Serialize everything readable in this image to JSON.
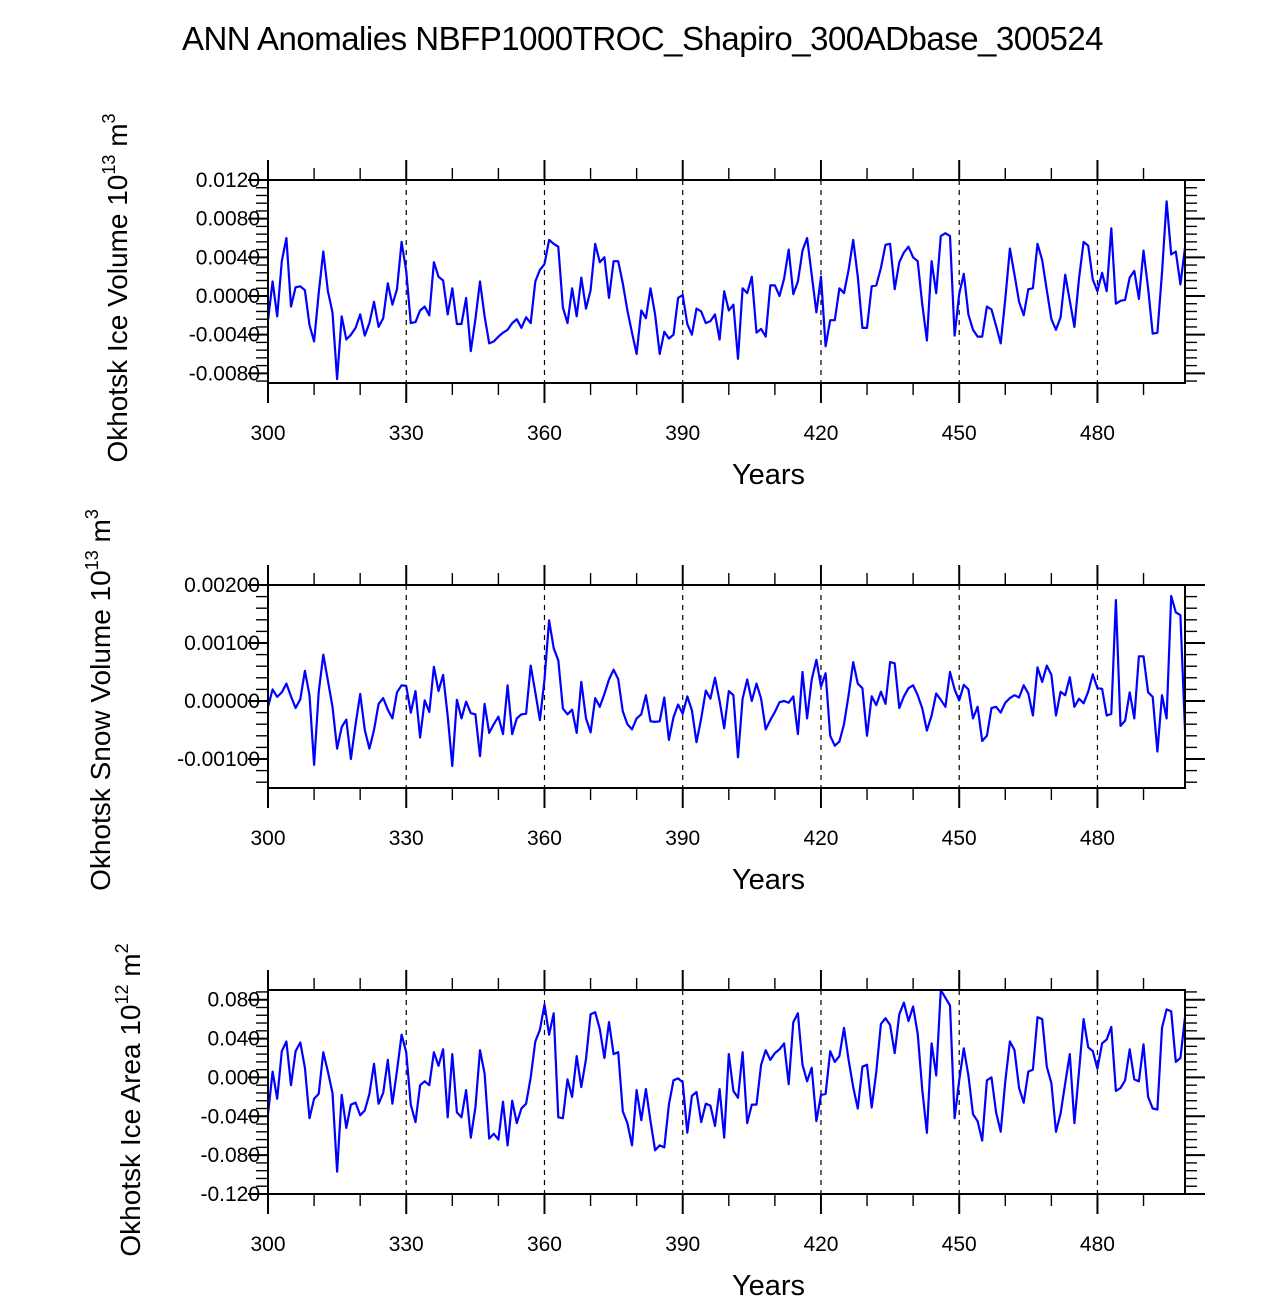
{
  "title": "ANN Anomalies NBFP1000TROC_Shapiro_300ADbase_300524",
  "chart_data": [
    {
      "type": "line",
      "title": "",
      "xlabel": "Years",
      "ylabel": "Okhotsk Ice Volume 10",
      "ylabel_exponent": "13",
      "ylabel_unit": " m",
      "ylabel_unit_exponent": "3",
      "xlim": [
        300,
        499
      ],
      "ylim": [
        -0.009,
        0.012
      ],
      "xticks": [
        300,
        330,
        360,
        390,
        420,
        450,
        480
      ],
      "xtick_labels": [
        "300",
        "330",
        "360",
        "390",
        "420",
        "450",
        "480"
      ],
      "yticks": [
        -0.008,
        -0.004,
        0.0,
        0.004,
        0.008,
        0.012
      ],
      "ytick_labels": [
        "-0.0080",
        "-0.0040",
        "0.0000",
        "0.0040",
        "0.0080",
        "0.0120"
      ],
      "vlines": [
        330,
        360,
        390,
        420,
        450,
        480
      ],
      "line_color": "#0000ff",
      "x_start": 300,
      "series": [
        {
          "name": "Okhotsk Ice Volume",
          "values": [
            -0.0025,
            0.0015,
            -0.0021,
            0.0036,
            0.006,
            -0.0011,
            0.0009,
            0.001,
            0.0006,
            -0.003,
            -0.0047,
            0.0003,
            0.0046,
            0.0005,
            -0.0017,
            -0.0086,
            -0.0021,
            -0.0045,
            -0.004,
            -0.0033,
            -0.0019,
            -0.0041,
            -0.0028,
            -0.0006,
            -0.0032,
            -0.0023,
            0.0013,
            -0.0009,
            0.0007,
            0.0056,
            0.0026,
            -0.0028,
            -0.0027,
            -0.0015,
            -0.0011,
            -0.002,
            0.0035,
            0.002,
            0.0016,
            -0.0019,
            0.0008,
            -0.0029,
            -0.0029,
            -0.0002,
            -0.0057,
            -0.0024,
            0.0015,
            -0.0021,
            -0.0049,
            -0.0047,
            -0.0042,
            -0.0038,
            -0.0035,
            -0.0028,
            -0.0024,
            -0.0033,
            -0.0022,
            -0.0028,
            0.0015,
            0.0027,
            0.0033,
            0.0058,
            0.0054,
            0.0051,
            -0.0012,
            -0.0028,
            0.0008,
            -0.0021,
            0.0019,
            -0.0013,
            0.0006,
            0.0054,
            0.0035,
            0.004,
            -0.0002,
            0.0036,
            0.0036,
            0.0013,
            -0.0015,
            -0.0038,
            -0.006,
            -0.0015,
            -0.0023,
            0.0008,
            -0.0019,
            -0.006,
            -0.0037,
            -0.0044,
            -0.004,
            -0.0002,
            0.0001,
            -0.0029,
            -0.004,
            -0.0013,
            -0.0016,
            -0.0028,
            -0.0026,
            -0.0019,
            -0.0045,
            0.0005,
            -0.0015,
            -0.0009,
            -0.0065,
            0.0008,
            0.0003,
            0.002,
            -0.0038,
            -0.0034,
            -0.0042,
            0.0011,
            0.0011,
            0.0,
            0.0018,
            0.0048,
            0.0002,
            0.0015,
            0.0047,
            0.006,
            0.0022,
            -0.0017,
            0.002,
            -0.0052,
            -0.0025,
            -0.0025,
            0.0008,
            0.0003,
            0.0027,
            0.0058,
            0.002,
            -0.0033,
            -0.0033,
            0.001,
            0.0011,
            0.0029,
            0.0053,
            0.0054,
            0.0007,
            0.0035,
            0.0045,
            0.0051,
            0.004,
            0.0036,
            -0.0009,
            -0.0046,
            0.0036,
            0.0003,
            0.0062,
            0.0065,
            0.0062,
            -0.0041,
            0.0002,
            0.0023,
            -0.0019,
            -0.0035,
            -0.0042,
            -0.0042,
            -0.0011,
            -0.0014,
            -0.0031,
            -0.0049,
            -0.0003,
            0.0049,
            0.0022,
            -0.0006,
            -0.002,
            0.0007,
            0.0008,
            0.0054,
            0.0037,
            0.0006,
            -0.0024,
            -0.0035,
            -0.0022,
            0.0022,
            -0.0005,
            -0.0032,
            0.0018,
            0.0056,
            0.0052,
            0.0017,
            0.0005,
            0.0024,
            0.0005,
            0.007,
            -0.0008,
            -0.0005,
            -0.0004,
            0.0019,
            0.0026,
            -0.0003,
            0.0047,
            0.0008,
            -0.0039,
            -0.0038,
            0.0024,
            0.0098,
            0.0043,
            0.0046,
            0.0012,
            0.005
          ]
        }
      ]
    },
    {
      "type": "line",
      "title": "",
      "xlabel": "Years",
      "ylabel": "Okhotsk Snow Volume 10",
      "ylabel_exponent": "13",
      "ylabel_unit": " m",
      "ylabel_unit_exponent": "3",
      "xlim": [
        300,
        499
      ],
      "ylim": [
        -0.0015,
        0.002
      ],
      "xticks": [
        300,
        330,
        360,
        390,
        420,
        450,
        480
      ],
      "xtick_labels": [
        "300",
        "330",
        "360",
        "390",
        "420",
        "450",
        "480"
      ],
      "yticks": [
        -0.001,
        0.0,
        0.001,
        0.002
      ],
      "ytick_labels": [
        "-0.00100",
        "0.00000",
        "0.00100",
        "0.00200"
      ],
      "vlines": [
        330,
        360,
        390,
        420,
        450,
        480
      ],
      "line_color": "#0000ff",
      "x_start": 300,
      "series": [
        {
          "name": "Okhotsk Snow Volume",
          "values": [
            -0.0001,
            0.0002,
            7e-05,
            0.00015,
            0.0003,
            8e-05,
            -0.00012,
            3e-05,
            0.00052,
            0.0001,
            -0.0011,
            0.00015,
            0.0008,
            0.00035,
            -0.0001,
            -0.00082,
            -0.00045,
            -0.00032,
            -0.001,
            -0.0004,
            0.00012,
            -0.0005,
            -0.00082,
            -0.0005,
            -5e-05,
            5e-05,
            -0.00015,
            -0.0003,
            0.00015,
            0.00027,
            0.00026,
            -0.0002,
            0.00017,
            -0.00063,
            1e-05,
            -0.00019,
            0.00059,
            0.00017,
            0.00045,
            -0.00026,
            -0.00112,
            2e-05,
            -0.0003,
            -1e-05,
            -0.00021,
            -0.00023,
            -0.00095,
            -5e-05,
            -0.00055,
            -0.0004,
            -0.00027,
            -0.00057,
            0.00027,
            -0.00057,
            -0.0003,
            -0.00023,
            -0.00022,
            0.00061,
            0.00015,
            -0.00033,
            0.00037,
            0.00139,
            0.00091,
            0.0007,
            -0.00013,
            -0.00023,
            -0.00015,
            -0.00055,
            0.00033,
            -0.0003,
            -0.00054,
            5e-05,
            -0.0001,
            0.00012,
            0.00037,
            0.00054,
            0.00038,
            -0.00018,
            -0.0004,
            -0.00049,
            -0.0003,
            -0.00023,
            0.0001,
            -0.00035,
            -0.00036,
            -0.00035,
            6e-05,
            -0.00067,
            -0.00028,
            -6e-05,
            -0.00022,
            8e-05,
            -0.00016,
            -0.00071,
            -0.0003,
            0.00018,
            4e-05,
            0.0004,
            0.0,
            -0.00047,
            0.00017,
            0.0001,
            -0.00097,
            4e-05,
            0.00037,
            0.0,
            0.0003,
            4e-05,
            -0.00049,
            -0.00033,
            -0.00019,
            -2e-05,
            0.0,
            -3e-05,
            8e-05,
            -0.00057,
            0.0005,
            -0.0003,
            0.00037,
            0.00071,
            0.00025,
            0.00048,
            -0.0006,
            -0.00077,
            -0.0007,
            -0.0004,
            0.0001,
            0.00067,
            0.0003,
            0.00022,
            -0.0006,
            8e-05,
            -7e-05,
            0.00016,
            -5e-05,
            0.00067,
            0.00065,
            -0.00012,
            8e-05,
            0.00022,
            0.00027,
            0.0001,
            -0.00013,
            -0.00051,
            -0.00025,
            0.00013,
            2e-05,
            -0.0001,
            0.0005,
            0.0002,
            1e-05,
            0.00028,
            0.0002,
            -0.0003,
            -0.0001,
            -0.00069,
            -0.0006,
            -0.00012,
            -0.0001,
            -0.0002,
            -3e-05,
            5e-05,
            0.0001,
            6e-05,
            0.00027,
            0.00013,
            -0.00025,
            0.00058,
            0.00033,
            0.00061,
            0.00045,
            -0.00025,
            0.00016,
            0.0001,
            0.00041,
            -0.0001,
            4e-05,
            -4e-05,
            0.00016,
            0.00046,
            0.00022,
            0.00021,
            -0.00025,
            -0.00022,
            0.00174,
            -0.00043,
            -0.00034,
            0.00015,
            -0.0003,
            0.00077,
            0.00077,
            0.00015,
            7e-05,
            -0.00087,
            0.0001,
            -0.0003,
            0.00181,
            0.00153,
            0.00148,
            -0.0005
          ]
        }
      ]
    },
    {
      "type": "line",
      "title": "",
      "xlabel": "Years",
      "ylabel": "Okhotsk Ice Area 10",
      "ylabel_exponent": "12",
      "ylabel_unit": " m",
      "ylabel_unit_exponent": "2",
      "xlim": [
        300,
        499
      ],
      "ylim": [
        -0.12,
        0.09
      ],
      "xticks": [
        300,
        330,
        360,
        390,
        420,
        450,
        480
      ],
      "xtick_labels": [
        "300",
        "330",
        "360",
        "390",
        "420",
        "450",
        "480"
      ],
      "yticks": [
        -0.12,
        -0.08,
        -0.04,
        0.0,
        0.04,
        0.08
      ],
      "ytick_labels": [
        "-0.120",
        "-0.080",
        "-0.040",
        "0.000",
        "0.040",
        "0.080"
      ],
      "vlines": [
        330,
        360,
        390,
        420,
        450,
        480
      ],
      "line_color": "#0000ff",
      "x_start": 300,
      "series": [
        {
          "name": "Okhotsk Ice Area",
          "values": [
            -0.038,
            0.006,
            -0.022,
            0.027,
            0.037,
            -0.008,
            0.027,
            0.036,
            0.01,
            -0.042,
            -0.022,
            -0.017,
            0.026,
            0.006,
            -0.016,
            -0.097,
            -0.018,
            -0.052,
            -0.028,
            -0.026,
            -0.039,
            -0.034,
            -0.017,
            0.014,
            -0.027,
            -0.016,
            0.018,
            -0.027,
            0.007,
            0.044,
            0.026,
            -0.028,
            -0.046,
            -0.008,
            -0.004,
            -0.008,
            0.026,
            0.012,
            0.029,
            -0.041,
            0.024,
            -0.036,
            -0.041,
            -0.013,
            -0.062,
            -0.031,
            0.028,
            0.004,
            -0.063,
            -0.058,
            -0.064,
            -0.025,
            -0.07,
            -0.024,
            -0.047,
            -0.032,
            -0.027,
            0.0,
            0.037,
            0.049,
            0.075,
            0.044,
            0.066,
            -0.041,
            -0.042,
            -0.002,
            -0.02,
            0.022,
            -0.01,
            0.019,
            0.065,
            0.067,
            0.05,
            0.02,
            0.057,
            0.024,
            0.026,
            -0.035,
            -0.047,
            -0.07,
            -0.013,
            -0.044,
            -0.012,
            -0.045,
            -0.075,
            -0.07,
            -0.072,
            -0.028,
            -0.003,
            -0.001,
            -0.005,
            -0.057,
            -0.019,
            -0.015,
            -0.046,
            -0.027,
            -0.029,
            -0.05,
            -0.012,
            -0.062,
            0.024,
            -0.014,
            -0.021,
            0.026,
            -0.047,
            -0.028,
            -0.028,
            0.013,
            0.028,
            0.018,
            0.025,
            0.029,
            0.035,
            -0.007,
            0.057,
            0.066,
            0.013,
            -0.004,
            0.01,
            -0.045,
            -0.018,
            -0.017,
            0.027,
            0.016,
            0.022,
            0.051,
            0.018,
            -0.01,
            -0.032,
            0.011,
            0.013,
            -0.031,
            0.006,
            0.055,
            0.061,
            0.054,
            0.025,
            0.065,
            0.077,
            0.058,
            0.073,
            0.045,
            -0.013,
            -0.057,
            0.035,
            0.002,
            0.09,
            0.082,
            0.074,
            -0.042,
            -0.003,
            0.03,
            0.002,
            -0.038,
            -0.045,
            -0.065,
            -0.003,
            0.0,
            -0.036,
            -0.056,
            -0.004,
            0.037,
            0.028,
            -0.011,
            -0.026,
            0.006,
            0.008,
            0.062,
            0.06,
            0.011,
            -0.006,
            -0.056,
            -0.037,
            -0.006,
            0.024,
            -0.047,
            0.006,
            0.06,
            0.031,
            0.027,
            0.009,
            0.035,
            0.039,
            0.052,
            -0.014,
            -0.011,
            -0.003,
            0.029,
            -0.002,
            -0.004,
            0.034,
            -0.02,
            -0.032,
            -0.033,
            0.051,
            0.07,
            0.068,
            0.016,
            0.02,
            0.062
          ]
        }
      ]
    }
  ]
}
